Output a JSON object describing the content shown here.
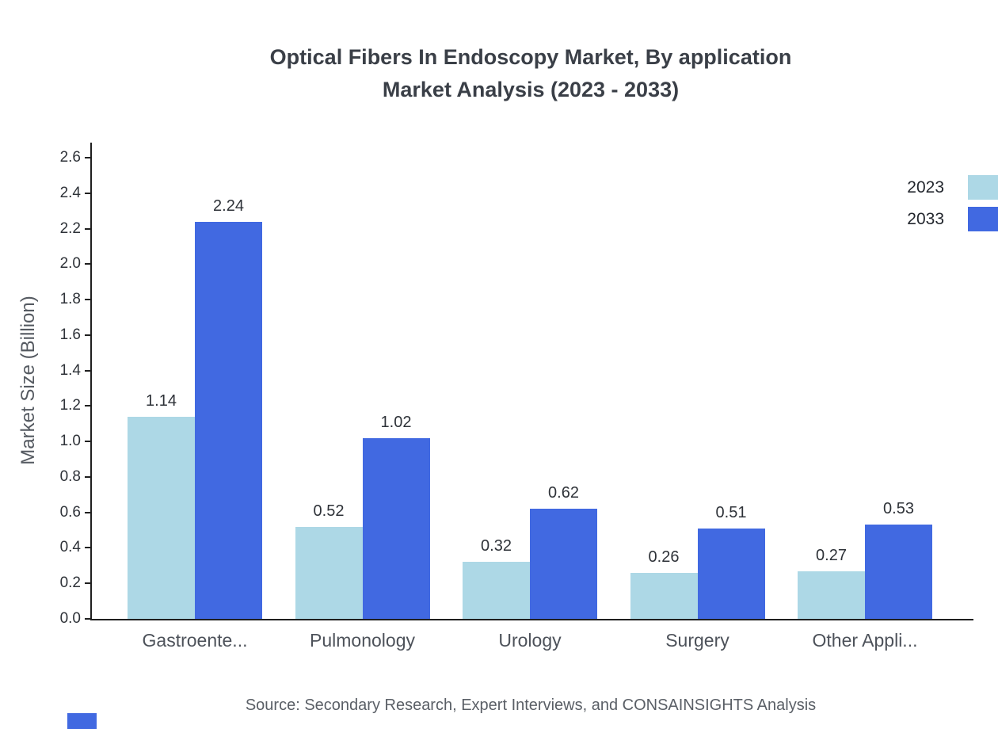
{
  "title": {
    "line1": "Optical Fibers In Endoscopy Market, By application",
    "line2": "Market Analysis (2023 - 2033)"
  },
  "source": "Source: Secondary Research, Expert Interviews, and CONSAINSIGHTS Analysis",
  "colors": {
    "series_2023": "#ADD8E6",
    "series_2033": "#4169E1",
    "axis": "#1f1f1f",
    "title_text": "#3a3f47"
  },
  "chart_data": {
    "type": "bar",
    "categories": [
      "Gastroente...",
      "Pulmonology",
      "Urology",
      "Surgery",
      "Other Appli..."
    ],
    "series": [
      {
        "name": "2023",
        "color": "#ADD8E6",
        "values": [
          1.14,
          0.52,
          0.32,
          0.26,
          0.27
        ]
      },
      {
        "name": "2033",
        "color": "#4169E1",
        "values": [
          2.24,
          1.02,
          0.62,
          0.51,
          0.53
        ]
      }
    ],
    "title": "Optical Fibers In Endoscopy Market, By application Market Analysis (2023 - 2033)",
    "xlabel": "",
    "ylabel": "Market Size (Billion)",
    "ylim": [
      0,
      2.6
    ],
    "ytick_step": 0.2,
    "grid": false,
    "legend_position": "top-right",
    "value_labels": true
  }
}
